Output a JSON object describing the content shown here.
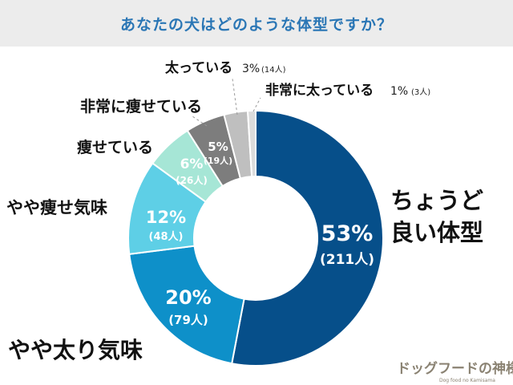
{
  "header": {
    "title": "あなたの犬はどのような体型ですか？",
    "background": "#ececec",
    "title_color": "#2a76b5"
  },
  "chart_data": {
    "type": "pie",
    "style": "donut",
    "title": "あなたの犬はどのような体型ですか？",
    "unit_count": "人",
    "slices": [
      {
        "label": "ちょうど良い体型",
        "percent": 53,
        "percent_text": "53%",
        "count": 211,
        "count_text": "(211人)",
        "color": "#064f8a",
        "text_color": "#ffffff"
      },
      {
        "label": "やや太り気味",
        "percent": 20,
        "percent_text": "20%",
        "count": 79,
        "count_text": "(79人)",
        "color": "#0e90c9",
        "text_color": "#ffffff"
      },
      {
        "label": "やや痩せ気味",
        "percent": 12,
        "percent_text": "12%",
        "count": 48,
        "count_text": "(48人)",
        "color": "#5ecfe6",
        "text_color": "#ffffff"
      },
      {
        "label": "痩せている",
        "percent": 6,
        "percent_text": "6%",
        "count": 26,
        "count_text": "(26人)",
        "color": "#a6e6d6",
        "text_color": "#ffffff"
      },
      {
        "label": "非常に痩せている",
        "percent": 5,
        "percent_text": "5%",
        "count": 19,
        "count_text": "(19人)",
        "color": "#7d7d7d",
        "text_color": "#ffffff"
      },
      {
        "label": "太っている",
        "percent": 3,
        "percent_text": "3%",
        "count": 14,
        "count_text": "(14人)",
        "color": "#bfbfbf",
        "text_color": "#555555"
      },
      {
        "label": "非常に太っている",
        "percent": 1,
        "percent_text": "1%",
        "count": 3,
        "count_text": "(3人)",
        "color": "#dcdcdc",
        "text_color": "#555555"
      }
    ]
  },
  "watermark": {
    "main": "ドッグフードの神様",
    "sub": "Dog food no Kamisama"
  }
}
